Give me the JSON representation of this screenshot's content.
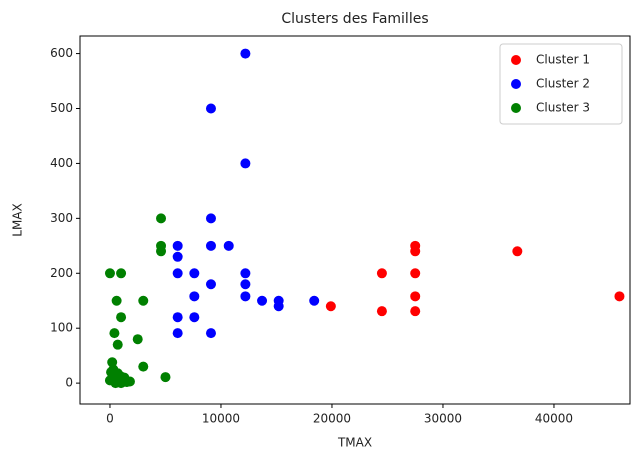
{
  "chart_data": {
    "type": "scatter",
    "title": "Clusters des Familles",
    "x_label": "TMAX",
    "y_label": "LMAX",
    "xlim": [
      -2700,
      46850
    ],
    "ylim": [
      -38,
      632
    ],
    "xticks": [
      0,
      10000,
      20000,
      30000,
      40000
    ],
    "yticks": [
      0,
      100,
      200,
      300,
      400,
      500,
      600
    ],
    "legend": "upper right",
    "series": [
      {
        "name": "Cluster 1",
        "color": "#ff0000",
        "x": [
          19900,
          24500,
          24500,
          27500,
          27500,
          27500,
          27500,
          27500,
          36700,
          45900
        ],
        "values": [
          140,
          200,
          131,
          250,
          240,
          200,
          158,
          131,
          240,
          158
        ]
      },
      {
        "name": "Cluster 2",
        "color": "#0000ff",
        "x": [
          12200,
          9100,
          12200,
          9100,
          6100,
          9100,
          10700,
          6100,
          6100,
          7600,
          12200,
          12200,
          9100,
          12200,
          13700,
          15200,
          15200,
          18400,
          7600,
          6100,
          7600,
          6100,
          9100
        ],
        "values": [
          600,
          500,
          400,
          300,
          250,
          250,
          250,
          230,
          200,
          200,
          200,
          180,
          180,
          158,
          150,
          150,
          140,
          150,
          158,
          120,
          120,
          91,
          91
        ]
      },
      {
        "name": "Cluster 3",
        "color": "#008000",
        "x": [
          4600,
          4600,
          4600,
          0,
          1000,
          600,
          3000,
          1000,
          400,
          2500,
          700,
          3000,
          5000,
          200,
          0,
          200,
          400,
          600,
          800,
          1000,
          1200,
          1500,
          1800,
          300,
          100,
          700,
          500,
          1000,
          1300
        ],
        "values": [
          300,
          250,
          240,
          200,
          200,
          150,
          150,
          120,
          91,
          80,
          70,
          30,
          11,
          38,
          5,
          10,
          15,
          3,
          8,
          12,
          5,
          2,
          3,
          25,
          20,
          18,
          0,
          0,
          10
        ]
      }
    ]
  }
}
